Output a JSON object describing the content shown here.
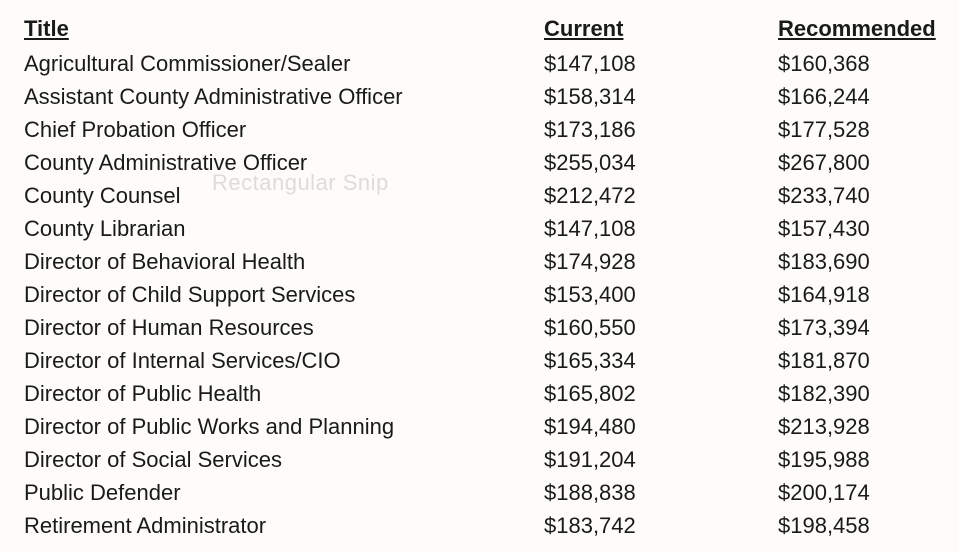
{
  "table": {
    "headers": {
      "title": "Title",
      "current": "Current",
      "recommended": "Recommended"
    },
    "rows": [
      {
        "title": "Agricultural Commissioner/Sealer",
        "current": "$147,108",
        "recommended": "$160,368"
      },
      {
        "title": "Assistant County Administrative Officer",
        "current": "$158,314",
        "recommended": "$166,244"
      },
      {
        "title": "Chief Probation Officer",
        "current": "$173,186",
        "recommended": "$177,528"
      },
      {
        "title": "County Administrative Officer",
        "current": "$255,034",
        "recommended": "$267,800"
      },
      {
        "title": "County Counsel",
        "current": "$212,472",
        "recommended": "$233,740"
      },
      {
        "title": "County Librarian",
        "current": "$147,108",
        "recommended": "$157,430"
      },
      {
        "title": "Director of Behavioral Health",
        "current": "$174,928",
        "recommended": "$183,690"
      },
      {
        "title": "Director of Child Support Services",
        "current": "$153,400",
        "recommended": "$164,918"
      },
      {
        "title": "Director of Human Resources",
        "current": "$160,550",
        "recommended": "$173,394"
      },
      {
        "title": "Director of Internal Services/CIO",
        "current": "$165,334",
        "recommended": "$181,870"
      },
      {
        "title": "Director of Public Health",
        "current": "$165,802",
        "recommended": "$182,390"
      },
      {
        "title": "Director of Public Works and Planning",
        "current": "$194,480",
        "recommended": "$213,928"
      },
      {
        "title": "Director of Social Services",
        "current": "$191,204",
        "recommended": "$195,988"
      },
      {
        "title": "Public Defender",
        "current": "$188,838",
        "recommended": "$200,174"
      },
      {
        "title": "Retirement Administrator",
        "current": "$183,742",
        "recommended": "$198,458"
      }
    ]
  },
  "watermark": "Rectangular Snip",
  "style": {
    "background_color": "#fdfcf8",
    "text_color": "#1a1a1a",
    "font_family": "Arial",
    "font_size_pt": 16,
    "header_weight": "bold",
    "header_underline": true
  }
}
